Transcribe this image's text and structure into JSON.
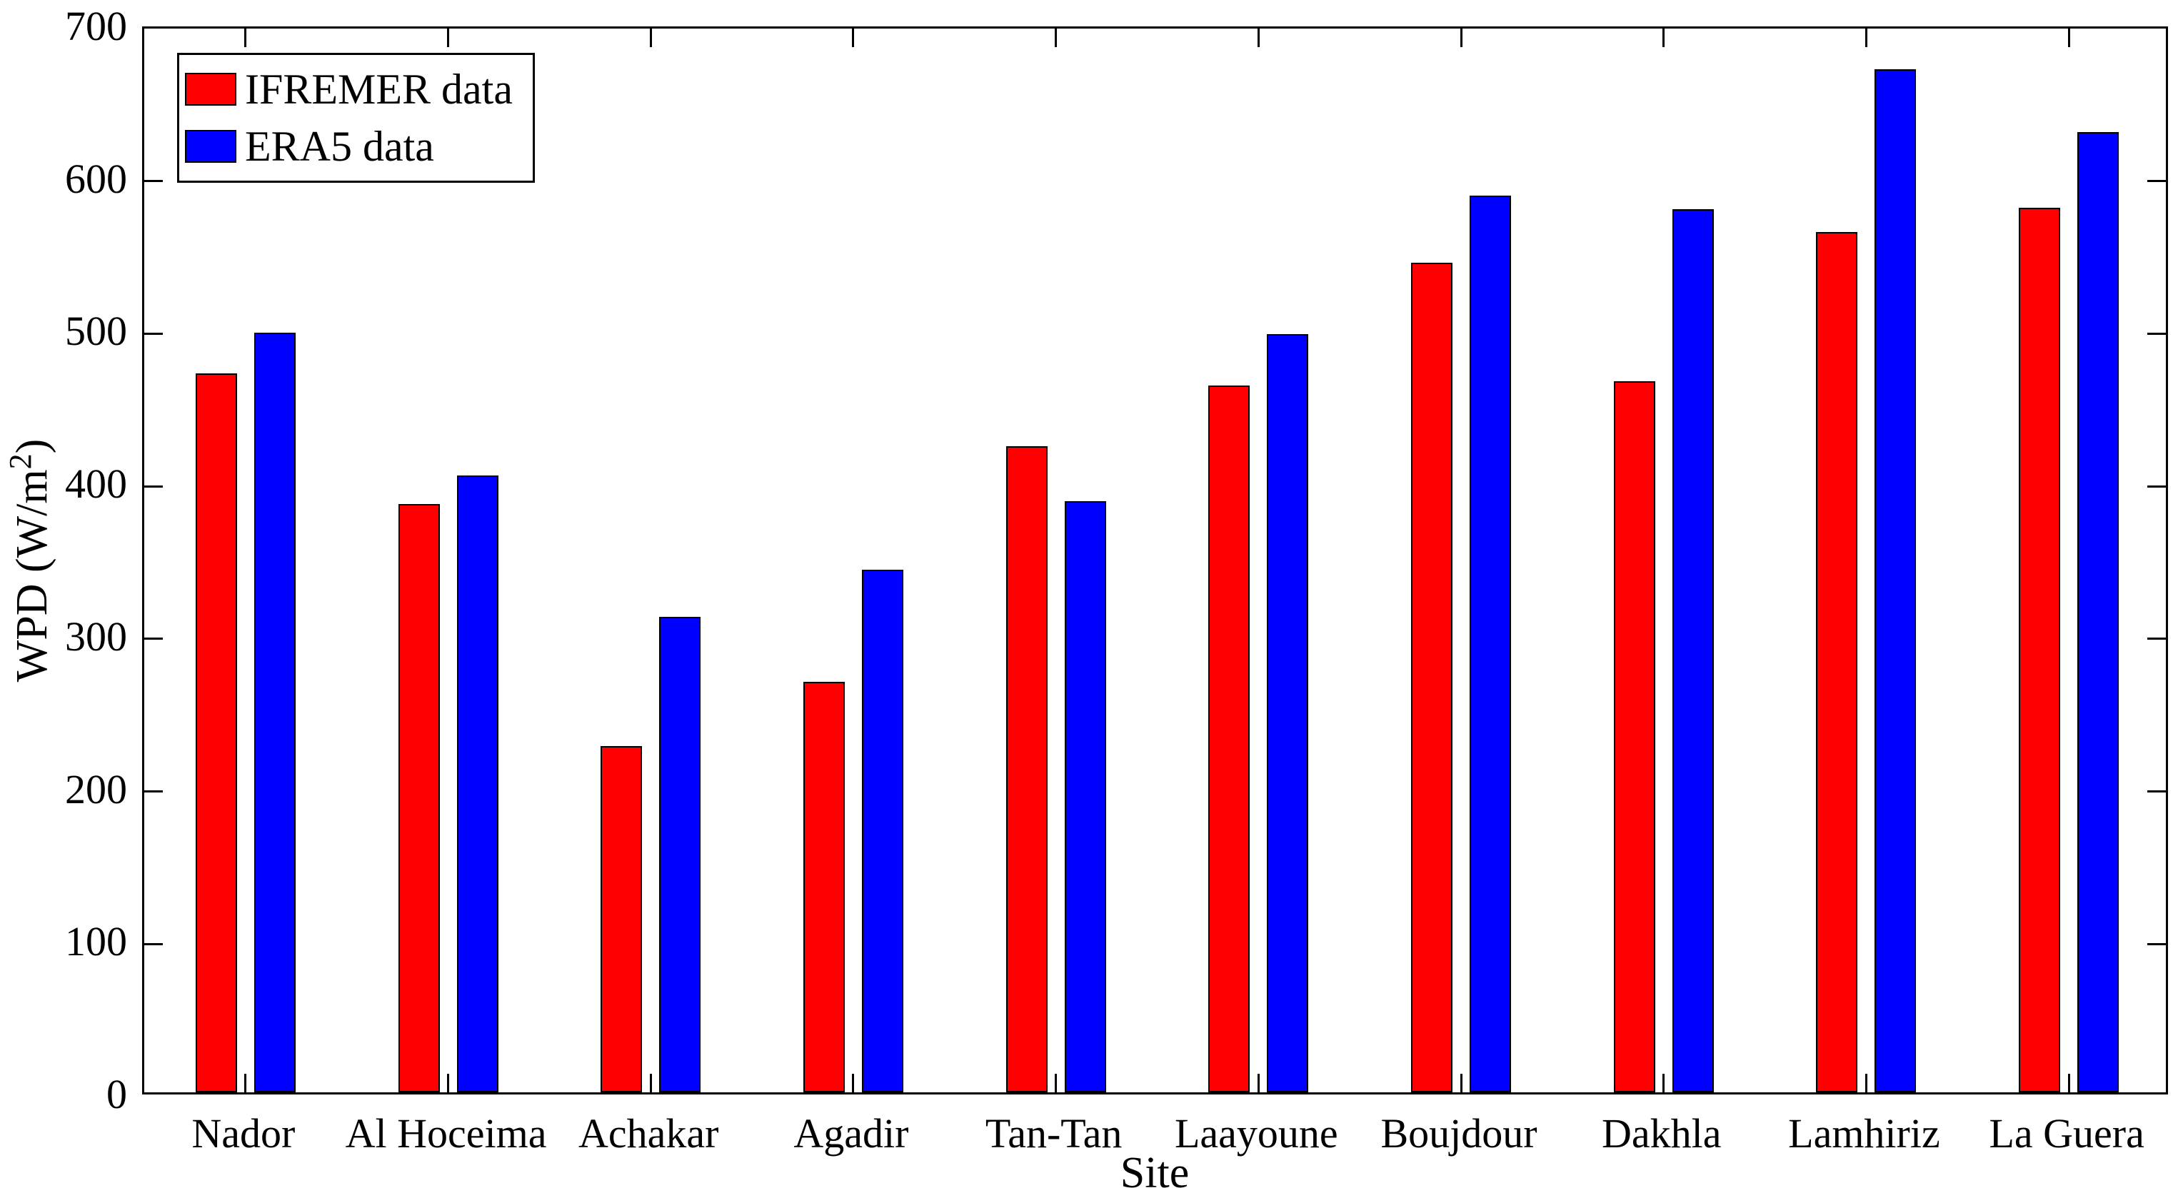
{
  "chart_data": {
    "type": "bar",
    "title": "",
    "xlabel": "Site",
    "ylabel": "WPD (W/m^2)",
    "ylabel_display": {
      "pre": "WPD (W/m",
      "sup": "2",
      "post": ")"
    },
    "categories": [
      "Nador",
      "Al Hoceima",
      "Achakar",
      "Agadir",
      "Tan-Tan",
      "Laayoune",
      "Boujdour",
      "Dakhla",
      "Lamhiriz",
      "La Guera"
    ],
    "series": [
      {
        "name": "IFREMER data",
        "color": "#ff0000",
        "values": [
          473,
          387,
          228,
          270,
          425,
          465,
          546,
          468,
          566,
          582
        ]
      },
      {
        "name": "ERA5 data",
        "color": "#0000ff",
        "values": [
          500,
          406,
          313,
          344,
          389,
          499,
          590,
          581,
          673,
          632
        ]
      }
    ],
    "ylim": [
      0,
      700
    ],
    "y_ticks": [
      0,
      100,
      200,
      300,
      400,
      500,
      600,
      700
    ],
    "legend_position": "top-left-inside",
    "grid": false,
    "axis_color": "#000000",
    "text_color": "#000000",
    "background_color": "#ffffff"
  }
}
